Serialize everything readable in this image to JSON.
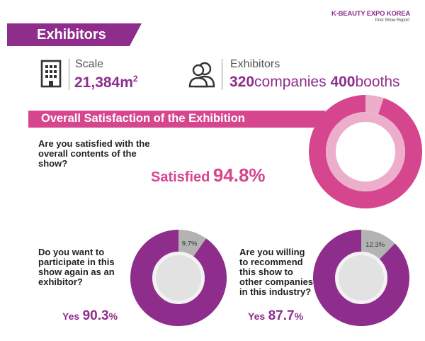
{
  "header": {
    "brand_title": "K-BEAUTY EXPO KOREA",
    "brand_subtitle": "Post Show Report"
  },
  "section": {
    "title": "Exhibitors"
  },
  "stats": {
    "scale_label": "Scale",
    "scale_value": "21,384m",
    "scale_superscript": "2",
    "exhibitors_label": "Exhibitors",
    "companies_number": "320",
    "companies_unit": "companies",
    "booths_number": "400",
    "booths_unit": "booths",
    "building_icon": "building-icon",
    "people_icon": "people-icon"
  },
  "satisfaction": {
    "title": "Overall Satisfaction of the Exhibition",
    "question": "Are you satisfied with the overall contents of the show?",
    "answer_label": "Satisfied",
    "answer_value": "94.8%"
  },
  "participate": {
    "question": "Do you want to participate in this show again as an exhibitor?",
    "answer_label": "Yes",
    "answer_number": "90.3",
    "answer_unit": "%",
    "remainder_label": "9.7%"
  },
  "recommend": {
    "question": "Are you willing to recommend this show to other companies in this industry?",
    "answer_label": "Yes",
    "answer_number": "87.7",
    "answer_unit": "%",
    "remainder_label": "12.3%"
  },
  "chart_data": [
    {
      "type": "pie",
      "name": "",
      "categories": [
        "Satisfied",
        "Other"
      ],
      "values": [
        94.8,
        5.2
      ],
      "colors": [
        "#d6468e",
        "#ecaecb"
      ]
    },
    {
      "type": "pie",
      "name": "",
      "categories": [
        "Yes",
        "Other"
      ],
      "values": [
        90.3,
        9.7
      ],
      "labels": [
        "",
        "9.7%"
      ],
      "colors": [
        "#8e2d8c",
        "#b3b3b3"
      ]
    },
    {
      "type": "pie",
      "name": "",
      "categories": [
        "Yes",
        "Other"
      ],
      "values": [
        87.7,
        12.3
      ],
      "labels": [
        "",
        "12.3%"
      ],
      "colors": [
        "#8e2d8c",
        "#b3b3b3"
      ]
    }
  ],
  "colors": {
    "purple": "#8e2d8c",
    "pink": "#d6468e",
    "light_pink": "#ecaecb",
    "gray": "#b3b3b3"
  }
}
